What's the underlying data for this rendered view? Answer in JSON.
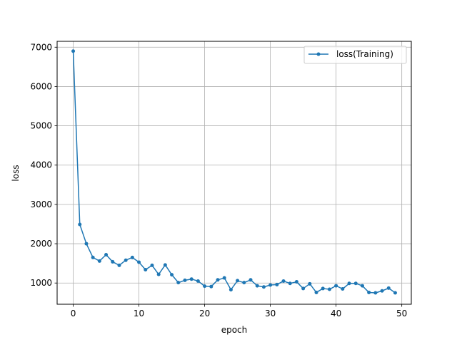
{
  "chart_data": {
    "type": "line",
    "title": "",
    "xlabel": "epoch",
    "ylabel": "loss",
    "xlim": [
      -2.45,
      51.45
    ],
    "ylim": [
      460,
      7150
    ],
    "grid": true,
    "legend_position": "top-right",
    "x_ticks": [
      0,
      10,
      20,
      30,
      40,
      50
    ],
    "y_ticks": [
      1000,
      2000,
      3000,
      4000,
      5000,
      6000,
      7000
    ],
    "series": [
      {
        "name": "loss(Training)",
        "color": "#1f77b4",
        "marker": "circle",
        "x": [
          0,
          1,
          2,
          3,
          4,
          5,
          6,
          7,
          8,
          9,
          10,
          11,
          12,
          13,
          14,
          15,
          16,
          17,
          18,
          19,
          20,
          21,
          22,
          23,
          24,
          25,
          26,
          27,
          28,
          29,
          30,
          31,
          32,
          33,
          34,
          35,
          36,
          37,
          38,
          39,
          40,
          41,
          42,
          43,
          44,
          45,
          46,
          47,
          48,
          49
        ],
        "values": [
          6900,
          2490,
          2000,
          1650,
          1560,
          1720,
          1540,
          1450,
          1580,
          1650,
          1530,
          1340,
          1450,
          1220,
          1460,
          1210,
          1010,
          1070,
          1100,
          1050,
          920,
          910,
          1080,
          1130,
          830,
          1060,
          1010,
          1080,
          930,
          900,
          950,
          960,
          1050,
          990,
          1030,
          860,
          980,
          760,
          860,
          840,
          930,
          850,
          990,
          990,
          930,
          760,
          750,
          800,
          870,
          750
        ]
      }
    ]
  }
}
